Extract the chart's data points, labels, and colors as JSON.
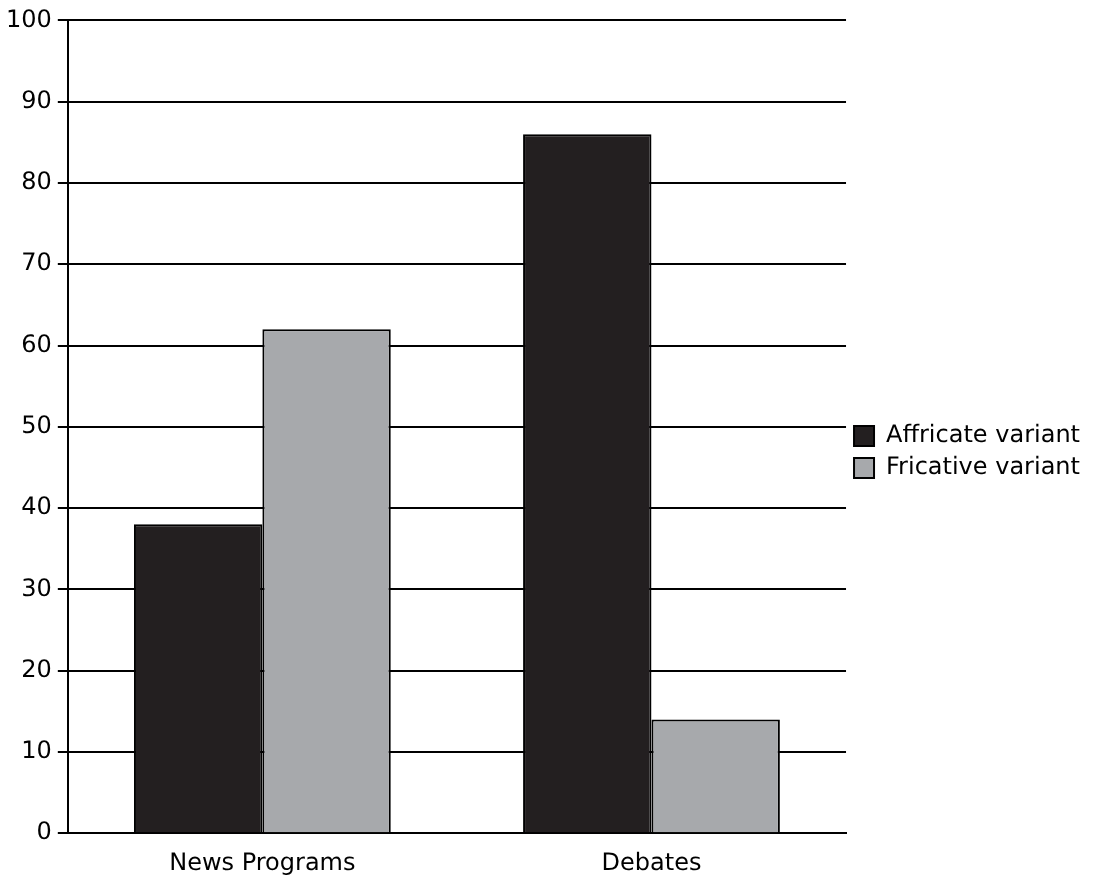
{
  "chart_data": {
    "type": "bar",
    "categories": [
      "News Programs",
      "Debates"
    ],
    "series": [
      {
        "name": "Affricate variant",
        "color": "#231f20",
        "values": [
          38,
          86
        ]
      },
      {
        "name": "Fricative variant",
        "color": "#a7a9ac",
        "values": [
          62,
          14
        ]
      }
    ],
    "ylim": [
      0,
      100
    ],
    "yticks": [
      0,
      10,
      20,
      30,
      40,
      50,
      60,
      70,
      80,
      90,
      100
    ],
    "grid": "y",
    "legend": "right"
  }
}
